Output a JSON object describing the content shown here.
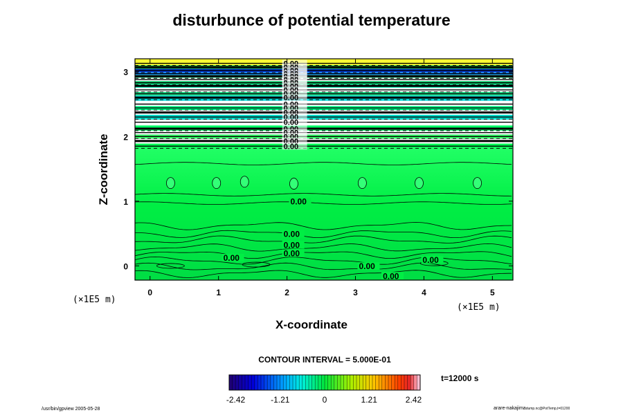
{
  "chart_data": {
    "type": "heatmap",
    "title": "disturbunce of potential temperature",
    "xlabel": "X-coordinate",
    "ylabel": "Z-coordinate",
    "x_unit": "(×1E5 m)",
    "z_unit": "(×1E5 m)",
    "xlim": [
      -0.22,
      5.3
    ],
    "ylim": [
      -0.22,
      3.2
    ],
    "x_ticks": [
      "0",
      "1",
      "2",
      "3",
      "4",
      "5"
    ],
    "y_ticks": [
      "0",
      "1",
      "2",
      "3"
    ],
    "contour_interval": "CONTOUR INTERVAL = 5.000E-01",
    "time_label": "t=12000 s",
    "colorbar": {
      "min": -2.6,
      "max": 2.6,
      "tick_labels": [
        "-2.42",
        "-1.21",
        "0",
        "1.21",
        "2.42"
      ]
    },
    "contour_labels": [
      {
        "text": "0.00",
        "x": 2.05,
        "z": 0.97
      },
      {
        "text": "0.00",
        "x": 1.95,
        "z": 0.47
      },
      {
        "text": "0.00",
        "x": 1.95,
        "z": 0.3
      },
      {
        "text": "0.00",
        "x": 1.95,
        "z": 0.17
      },
      {
        "text": "0.00",
        "x": 1.07,
        "z": 0.1
      },
      {
        "text": "0.00",
        "x": 3.05,
        "z": -0.03
      },
      {
        "text": "0.00",
        "x": 3.4,
        "z": -0.18
      },
      {
        "text": "0.00",
        "x": 3.98,
        "z": 0.07
      }
    ],
    "upper_bands_z": [
      3.13,
      3.07,
      3.02,
      2.97,
      2.93,
      2.88,
      2.83,
      2.78,
      2.72,
      2.66,
      2.6,
      2.5,
      2.44,
      2.37,
      2.3,
      2.22,
      2.12,
      2.06,
      2.0,
      1.93,
      1.85
    ],
    "upper_band_colors": [
      "#ffff33",
      "#22cc44",
      "#0033cc",
      "#1188ff",
      "#22dd88",
      "#ffffff",
      "#00cc66",
      "#33ffcc",
      "#ffffff",
      "#22dd88",
      "#00dddd",
      "#ffffff",
      "#00ff88",
      "#ffffff",
      "#00ddcc",
      "#ffffff",
      "#00ff66",
      "#ffffff",
      "#33ff66",
      "#ffffff",
      "#00ff55"
    ],
    "lower_region_color": "#00ee44",
    "small_cells": [
      {
        "x": 0.3,
        "z": 1.28
      },
      {
        "x": 0.97,
        "z": 1.28
      },
      {
        "x": 1.38,
        "z": 1.3
      },
      {
        "x": 2.1,
        "z": 1.27
      },
      {
        "x": 3.1,
        "z": 1.28
      },
      {
        "x": 3.93,
        "z": 1.28
      },
      {
        "x": 4.78,
        "z": 1.28
      }
    ]
  },
  "footer": {
    "left": "/usr/bin/gpview 2005-05-28",
    "right": "arare-nakajima",
    "right_small": "dump.nc@PotTemp,t=01200"
  }
}
